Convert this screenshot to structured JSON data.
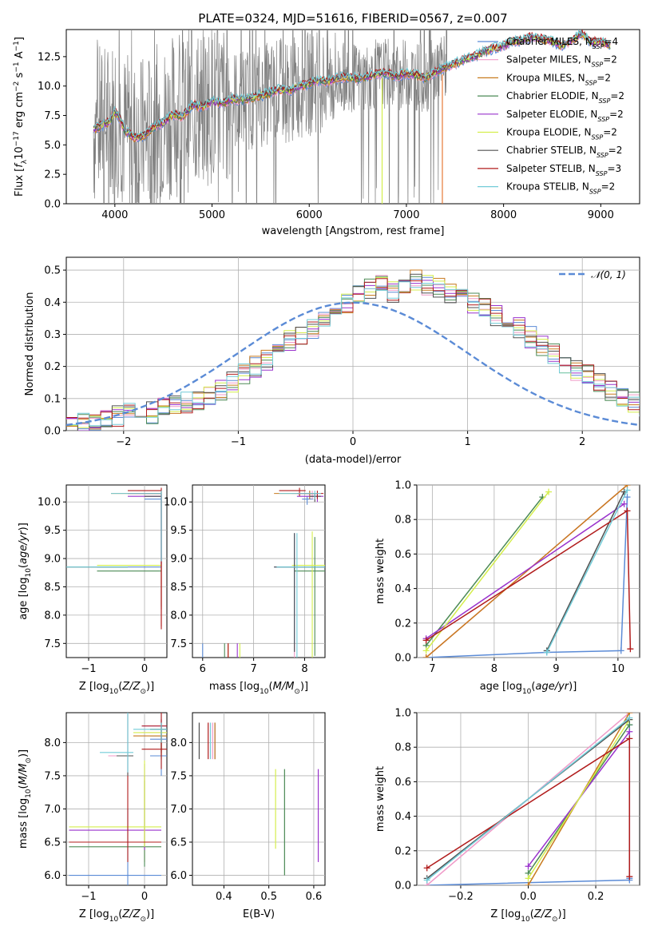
{
  "colors": {
    "Chabrier MILES": "#5b8bd6",
    "Salpeter MILES": "#f09ac8",
    "Kroupa MILES": "#c87a1e",
    "Chabrier ELODIE": "#4b8a55",
    "Salpeter ELODIE": "#9932cc",
    "Kroupa ELODIE": "#d4ee4c",
    "Chabrier STELIB": "#505050",
    "Salpeter STELIB": "#b11c1c",
    "Kroupa STELIB": "#72ccd8",
    "data": "#808080",
    "normal": "#5b8bd6",
    "orange": "#e67835"
  },
  "chart_data": [
    {
      "id": "spectrum",
      "type": "line",
      "title": "PLATE=0324, MJD=51616, FIBERID=0567, z=0.007",
      "xlabel": "wavelength [Angstrom, rest frame]",
      "ylabel": "Flux [f_λ 10^-17 erg cm^-2 s^-1 A^-1]",
      "xlim": [
        3500,
        9400
      ],
      "ylim": [
        0,
        14.8
      ],
      "xticks": [
        "4000",
        "5000",
        "6000",
        "7000",
        "8000",
        "9000"
      ],
      "yticks": [
        "0.0",
        "2.5",
        "5.0",
        "7.5",
        "10.0",
        "12.5"
      ],
      "legend_position": "top-right",
      "legend": [
        {
          "name": "Chabrier MILES",
          "nssp": "4"
        },
        {
          "name": "Salpeter MILES",
          "nssp": "2"
        },
        {
          "name": "Kroupa MILES",
          "nssp": "2"
        },
        {
          "name": "Chabrier ELODIE",
          "nssp": "2"
        },
        {
          "name": "Salpeter ELODIE",
          "nssp": "2"
        },
        {
          "name": "Kroupa ELODIE",
          "nssp": "2"
        },
        {
          "name": "Chabrier STELIB",
          "nssp": "2"
        },
        {
          "name": "Salpeter STELIB",
          "nssp": "3"
        },
        {
          "name": "Kroupa STELIB",
          "nssp": "2"
        }
      ],
      "model_envelope": {
        "x": [
          3780,
          3900,
          3950,
          4000,
          4050,
          4100,
          4200,
          4300,
          4400,
          4500,
          4600,
          4700,
          4800,
          4900,
          5000,
          5100,
          5200,
          5300,
          5400,
          5500,
          5600,
          5700,
          5800,
          5900,
          6000,
          6100,
          6200,
          6300,
          6400,
          6500,
          6600,
          6700,
          6800,
          6900,
          7000,
          7100,
          7200,
          7300,
          7400,
          7500,
          7600,
          7700,
          7800,
          7900,
          8000,
          8100,
          8200,
          8300,
          8400,
          8500,
          8600,
          8700,
          8800,
          8900,
          9000,
          9100
        ],
        "y": [
          6.3,
          6.8,
          7.0,
          7.8,
          7.3,
          6.2,
          5.6,
          5.8,
          6.5,
          6.9,
          7.6,
          7.4,
          8.4,
          8.2,
          8.7,
          8.5,
          8.9,
          8.8,
          9.0,
          9.2,
          9.4,
          9.7,
          9.6,
          10.0,
          10.2,
          10.5,
          10.4,
          10.7,
          10.8,
          10.6,
          10.8,
          11.0,
          11.1,
          10.8,
          11.1,
          10.9,
          10.7,
          11.2,
          11.6,
          11.9,
          12.3,
          12.5,
          12.9,
          13.2,
          13.4,
          13.8,
          13.9,
          14.2,
          14.0,
          13.8,
          13.4,
          13.9,
          14.4,
          13.7,
          13.8,
          13.4
        ]
      },
      "data_spectrum": {
        "xmin": 3780,
        "xmax": 7420
      }
    },
    {
      "id": "residuals",
      "type": "bar",
      "xlabel": "(data-model)/error",
      "ylabel": "Normed distribution",
      "xlim": [
        -2.5,
        2.5
      ],
      "ylim": [
        0,
        0.54
      ],
      "xticks": [
        "−2",
        "−1",
        "0",
        "1",
        "2"
      ],
      "yticks": [
        "0.0",
        "0.1",
        "0.2",
        "0.3",
        "0.4",
        "0.5"
      ],
      "legend_position": "top-right",
      "legend": [
        "𝒩(0, 1)"
      ],
      "bin_edges_start": -2.5,
      "bin_width": 0.1,
      "mean_histogram": [
        0.01,
        0.02,
        0.03,
        0.035,
        0.045,
        0.05,
        0.06,
        0.055,
        0.07,
        0.08,
        0.09,
        0.1,
        0.115,
        0.13,
        0.15,
        0.175,
        0.2,
        0.22,
        0.25,
        0.28,
        0.3,
        0.32,
        0.35,
        0.38,
        0.4,
        0.42,
        0.44,
        0.45,
        0.43,
        0.46,
        0.47,
        0.45,
        0.44,
        0.43,
        0.42,
        0.4,
        0.38,
        0.36,
        0.34,
        0.32,
        0.29,
        0.26,
        0.24,
        0.21,
        0.19,
        0.17,
        0.145,
        0.12,
        0.1,
        0.085,
        0.07
      ]
    },
    {
      "id": "age-vs-Z",
      "type": "scatter",
      "xlabel": "Z [log10(Z/Z⊙)]",
      "ylabel": "age [log10(age/yr)]",
      "xlim": [
        -1.4,
        0.4
      ],
      "ylim": [
        7.25,
        10.3
      ],
      "xticks": [
        "−1",
        "0"
      ],
      "yticks": [
        "7.5",
        "8.0",
        "8.5",
        "9.0",
        "9.5",
        "10.0"
      ]
    },
    {
      "id": "age-vs-mass",
      "type": "scatter",
      "xlabel": "mass [log10(M/M⊙)]",
      "xlim": [
        5.8,
        8.4
      ],
      "ylim": [
        7.25,
        10.3
      ],
      "xticks": [
        "6",
        "7",
        "8"
      ],
      "yticks": [
        "7.5",
        "8.0",
        "8.5",
        "9.0",
        "9.5",
        "10.0"
      ]
    },
    {
      "id": "massweight-vs-age",
      "type": "line",
      "xlabel": "age [log10(age/yr)]",
      "ylabel": "mass weight",
      "xlim": [
        6.75,
        10.35
      ],
      "ylim": [
        0,
        1
      ],
      "xticks": [
        "7",
        "8",
        "9",
        "10"
      ],
      "yticks": [
        "0.0",
        "0.2",
        "0.4",
        "0.6",
        "0.8",
        "1.0"
      ]
    },
    {
      "id": "mass-vs-Z",
      "type": "scatter",
      "xlabel": "Z [log10(Z/Z⊙)]",
      "ylabel": "mass [log10(M/M⊙)]",
      "xlim": [
        -1.4,
        0.4
      ],
      "ylim": [
        5.85,
        8.45
      ],
      "xticks": [
        "−1",
        "0"
      ],
      "yticks": [
        "6.0",
        "6.5",
        "7.0",
        "7.5",
        "8.0"
      ]
    },
    {
      "id": "mass-vs-EBV",
      "type": "scatter",
      "xlabel": "E(B-V)",
      "xlim": [
        0.33,
        0.625
      ],
      "ylim": [
        5.85,
        8.45
      ],
      "xticks": [
        "0.4",
        "0.5",
        "0.6"
      ],
      "yticks": [
        "6.0",
        "6.5",
        "7.0",
        "7.5",
        "8.0"
      ]
    },
    {
      "id": "massweight-vs-Z",
      "type": "line",
      "xlabel": "Z [log10(Z/Z⊙)]",
      "ylabel": "mass weight",
      "xlim": [
        -0.33,
        0.33
      ],
      "ylim": [
        0,
        1
      ],
      "xticks": [
        "−0.2",
        "0.0",
        "0.2"
      ],
      "yticks": [
        "0.0",
        "0.2",
        "0.4",
        "0.6",
        "0.8",
        "1.0"
      ]
    }
  ],
  "fits": [
    {
      "model": "Chabrier MILES",
      "ebv": 0.38,
      "ssp": [
        {
          "age": 6.9,
          "Z": -0.3,
          "w": 0.0,
          "m": 6.0
        },
        {
          "age": 8.85,
          "Z": 0.3,
          "w": 0.03,
          "m": 7.8
        },
        {
          "age": 10.05,
          "Z": 0.3,
          "w": 0.04,
          "m": 8.05
        },
        {
          "age": 10.15,
          "Z": 0.3,
          "w": 0.93,
          "m": 8.1
        }
      ]
    },
    {
      "model": "Salpeter MILES",
      "ebv": 0.375,
      "ssp": [
        {
          "age": 6.9,
          "Z": -0.3,
          "w": 0.0,
          "m": 7.8
        },
        {
          "age": 10.15,
          "Z": 0.3,
          "w": 1.0,
          "m": 8.15
        }
      ]
    },
    {
      "model": "Kroupa MILES",
      "ebv": 0.38,
      "ssp": [
        {
          "age": 6.9,
          "Z": 0.0,
          "w": 0.0,
          "m": 6.5
        },
        {
          "age": 10.15,
          "Z": 0.3,
          "w": 1.0,
          "m": 8.1
        }
      ]
    },
    {
      "model": "Chabrier ELODIE",
      "ebv": 0.535,
      "ssp": [
        {
          "age": 6.9,
          "Z": 0.0,
          "w": 0.07,
          "m": 6.43
        },
        {
          "age": 8.78,
          "Z": 0.3,
          "w": 0.93,
          "m": 8.2
        }
      ]
    },
    {
      "model": "Salpeter ELODIE",
      "ebv": 0.61,
      "ssp": [
        {
          "age": 6.9,
          "Z": 0.0,
          "w": 0.11,
          "m": 6.68
        },
        {
          "age": 10.1,
          "Z": 0.3,
          "w": 0.89,
          "m": 8.25
        }
      ]
    },
    {
      "model": "Kroupa ELODIE",
      "ebv": 0.515,
      "ssp": [
        {
          "age": 6.9,
          "Z": 0.0,
          "w": 0.04,
          "m": 6.73
        },
        {
          "age": 8.88,
          "Z": 0.3,
          "w": 0.96,
          "m": 8.15
        }
      ]
    },
    {
      "model": "Chabrier STELIB",
      "ebv": 0.345,
      "ssp": [
        {
          "age": 8.85,
          "Z": -0.3,
          "w": 0.04,
          "m": 7.8
        },
        {
          "age": 10.1,
          "Z": 0.3,
          "w": 0.96,
          "m": 8.2
        }
      ]
    },
    {
      "model": "Salpeter STELIB",
      "ebv": 0.365,
      "ssp": [
        {
          "age": 6.9,
          "Z": -0.3,
          "w": 0.1,
          "m": 6.5
        },
        {
          "age": 10.15,
          "Z": 0.3,
          "w": 0.85,
          "m": 8.25
        },
        {
          "age": 10.2,
          "Z": 0.3,
          "w": 0.05,
          "m": 7.9
        }
      ]
    },
    {
      "model": "Kroupa STELIB",
      "ebv": 0.37,
      "ssp": [
        {
          "age": 8.85,
          "Z": -0.3,
          "w": 0.03,
          "m": 7.85
        },
        {
          "age": 10.15,
          "Z": 0.3,
          "w": 0.97,
          "m": 8.2
        }
      ]
    }
  ]
}
